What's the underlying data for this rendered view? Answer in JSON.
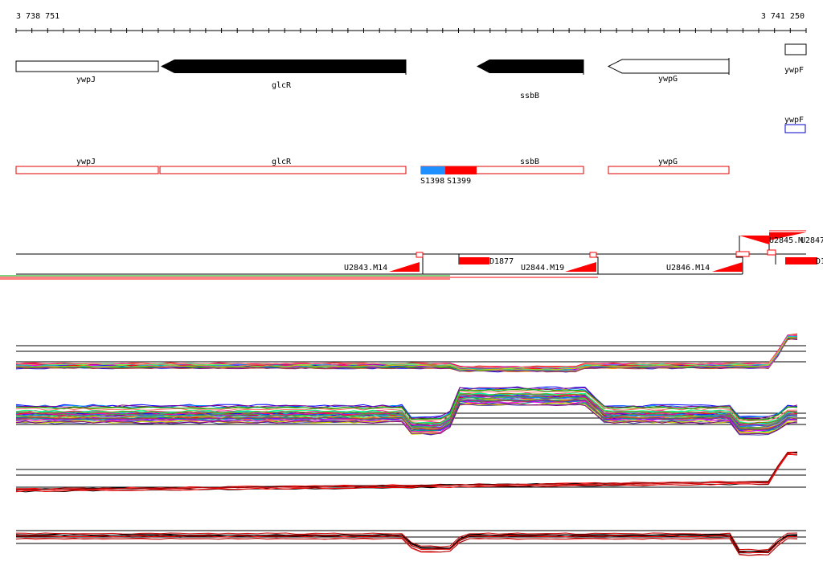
{
  "axis": {
    "start_label": "3 738 751",
    "end_label": "3 741 250"
  },
  "genes": [
    {
      "name": "ywpJ",
      "strand": "none",
      "fill": "white"
    },
    {
      "name": "glcR",
      "strand": "reverse",
      "fill": "black"
    },
    {
      "name": "ssbB",
      "strand": "reverse",
      "fill": "black"
    },
    {
      "name": "ywpG",
      "strand": "reverse",
      "fill": "white"
    },
    {
      "name": "ywpF",
      "strand": "none",
      "fill": "white"
    }
  ],
  "annotation_track": {
    "top_label": "ywpF",
    "features": [
      "ywpJ",
      "glcR",
      "ssbB",
      "ywpG"
    ],
    "segments": [
      "S1398",
      "S1399"
    ],
    "colors": {
      "outline": "#e00000",
      "segment_1": "#1e90ff",
      "segment_2": "#ff0000",
      "blue_box": "#0000cc"
    }
  },
  "transcripts": {
    "labels": [
      "U2843.M14",
      "D1877",
      "U2844.M19",
      "U2846.M14",
      "U2845.M",
      "U2847",
      "D1"
    ]
  },
  "colors": {
    "feature_red": "#ff0000",
    "line_green": "#00aa00"
  }
}
